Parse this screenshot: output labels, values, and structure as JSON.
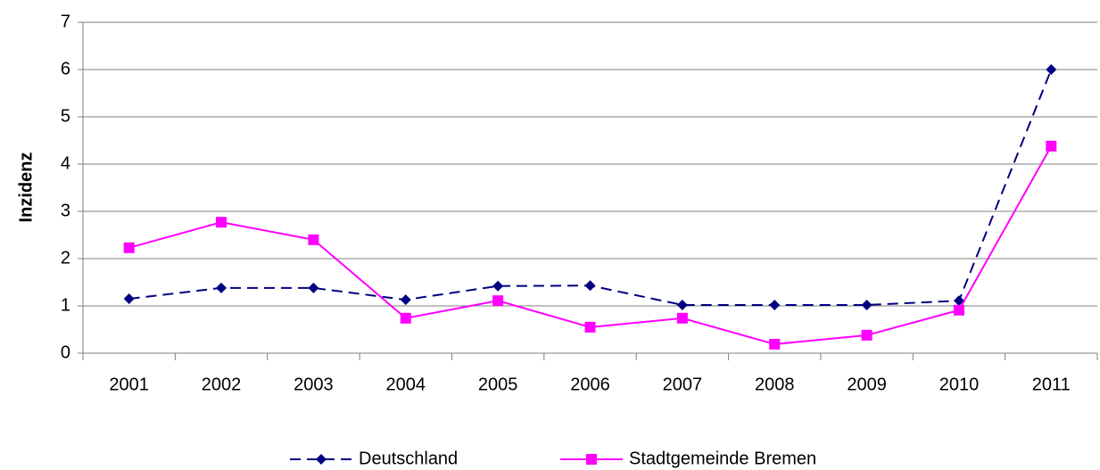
{
  "chart_data": {
    "type": "line",
    "y_label": "Inzidenz",
    "categories": [
      "2001",
      "2002",
      "2003",
      "2004",
      "2005",
      "2006",
      "2007",
      "2008",
      "2009",
      "2010",
      "2011"
    ],
    "series": [
      {
        "name": "Deutschland",
        "color": "#000080",
        "marker": "diamond",
        "dashed": true,
        "values": [
          1.15,
          1.38,
          1.38,
          1.13,
          1.42,
          1.43,
          1.02,
          1.02,
          1.02,
          1.11,
          6.0
        ]
      },
      {
        "name": "Stadtgemeinde Bremen",
        "color": "#ff00ff",
        "marker": "square",
        "dashed": false,
        "values": [
          2.23,
          2.77,
          2.4,
          0.74,
          1.11,
          0.55,
          0.74,
          0.19,
          0.38,
          0.91,
          4.38
        ]
      }
    ],
    "ylim": [
      0,
      7
    ],
    "yticks": [
      0,
      1,
      2,
      3,
      4,
      5,
      6,
      7
    ],
    "grid": true,
    "legend": "bottom"
  }
}
